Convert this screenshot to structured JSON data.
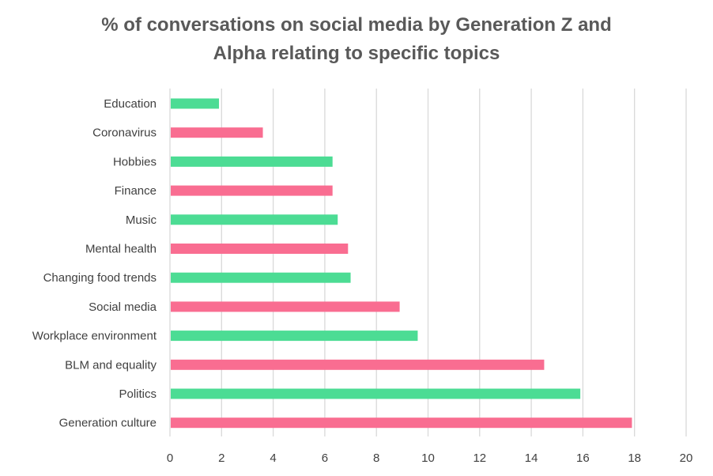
{
  "chart_data": {
    "type": "bar",
    "orientation": "horizontal",
    "title_lines": [
      "% of conversations on social media by Generation Z and",
      "Alpha relating to specific topics"
    ],
    "categories": [
      "Education",
      "Coronavirus",
      "Hobbies",
      "Finance",
      "Music",
      "Mental health",
      "Changing food trends",
      "Social media",
      "Workplace environment",
      "BLM and equality",
      "Politics",
      "Generation culture"
    ],
    "values": [
      1.9,
      3.6,
      6.3,
      6.3,
      6.5,
      6.9,
      7.0,
      8.9,
      9.6,
      14.5,
      15.9,
      17.9
    ],
    "bar_colors": [
      "#4cdc94",
      "#f96d91",
      "#4cdc94",
      "#f96d91",
      "#4cdc94",
      "#f96d91",
      "#4cdc94",
      "#f96d91",
      "#4cdc94",
      "#f96d91",
      "#4cdc94",
      "#f96d91"
    ],
    "xlim": [
      0,
      20
    ],
    "x_ticks": [
      "0",
      "2",
      "4",
      "6",
      "8",
      "10",
      "12",
      "14",
      "16",
      "18",
      "20"
    ],
    "grid": "vertical",
    "gridline_color": "#d9d9d9",
    "legend": "none"
  }
}
